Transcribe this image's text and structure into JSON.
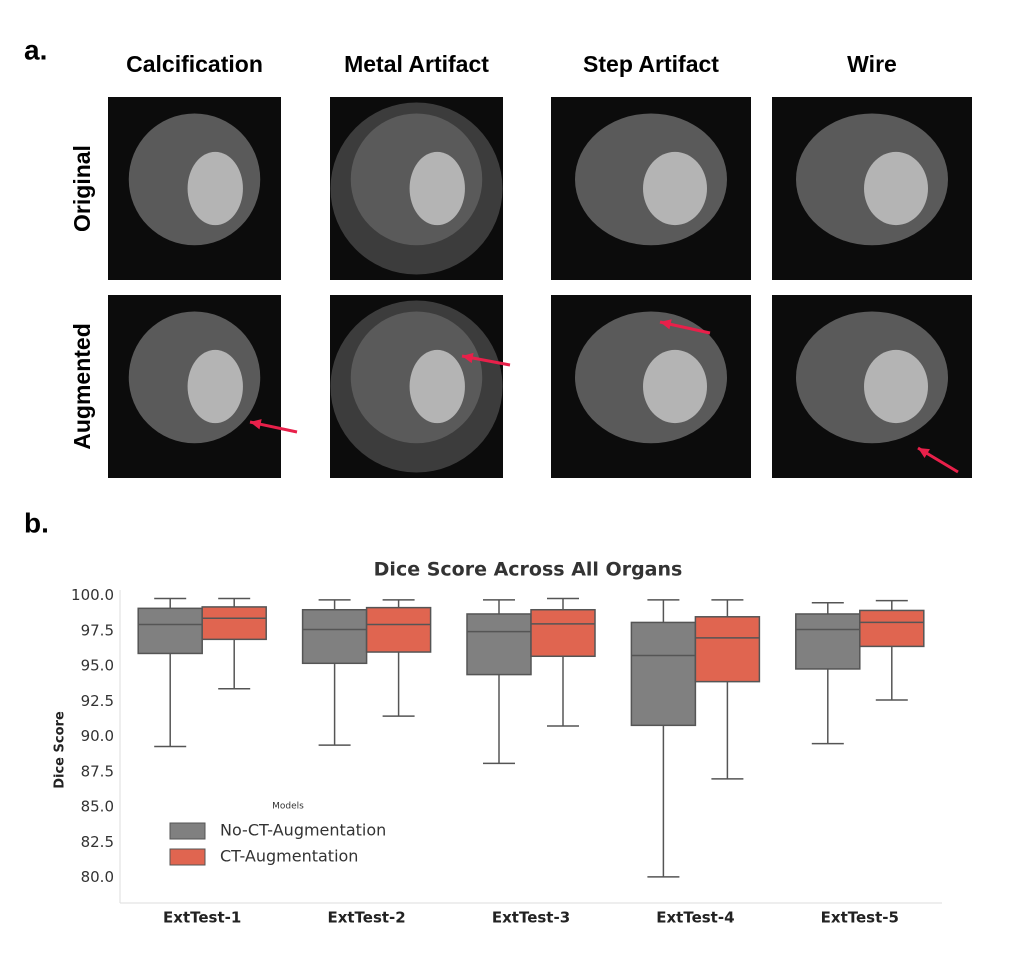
{
  "panel_a": {
    "label": "a.",
    "columns": [
      "Calcification",
      "Metal Artifact",
      "Step Artifact",
      "Wire"
    ],
    "rows": [
      "Original",
      "Augmented"
    ]
  },
  "panel_b": {
    "label": "b."
  },
  "chart_data": {
    "type": "box",
    "title": "Dice Score Across All Organs",
    "y_label": "Dice Score",
    "categories": [
      "ExtTest-1",
      "ExtTest-2",
      "ExtTest-3",
      "ExtTest-4",
      "ExtTest-5"
    ],
    "legend_title": "Models",
    "legend_position": "lower left",
    "grid": false,
    "ylim": [
      78.2,
      100.4
    ],
    "yticks": [
      {
        "value": 100,
        "label": "100.0"
      },
      97.5,
      {
        "value": 95,
        "label": "95.0"
      },
      92.5,
      {
        "value": 90,
        "label": "90.0"
      },
      87.5,
      {
        "value": 85,
        "label": "85.0"
      },
      82.5,
      {
        "value": 80,
        "label": "80.0"
      }
    ],
    "series": [
      {
        "name": "No-CT-Augmentation",
        "color": "#808080",
        "values": [
          {
            "min": 89.3,
            "q1": 95.9,
            "median": 97.95,
            "q3": 99.1,
            "max": 99.8
          },
          {
            "min": 89.4,
            "q1": 95.2,
            "median": 97.6,
            "q3": 99.0,
            "max": 99.7
          },
          {
            "min": 88.1,
            "q1": 94.4,
            "median": 97.45,
            "q3": 98.7,
            "max": 99.7
          },
          {
            "min": 80.05,
            "q1": 90.8,
            "median": 95.75,
            "q3": 98.1,
            "max": 99.7
          },
          {
            "min": 89.5,
            "q1": 94.8,
            "median": 97.6,
            "q3": 98.7,
            "max": 99.5
          }
        ]
      },
      {
        "name": "CT-Augmentation",
        "color": "#e06550",
        "values": [
          {
            "min": 93.4,
            "q1": 96.9,
            "median": 98.4,
            "q3": 99.2,
            "max": 99.8
          },
          {
            "min": 91.45,
            "q1": 96.0,
            "median": 97.95,
            "q3": 99.15,
            "max": 99.7
          },
          {
            "min": 90.75,
            "q1": 95.7,
            "median": 98.0,
            "q3": 99.0,
            "max": 99.8
          },
          {
            "min": 87.0,
            "q1": 93.9,
            "median": 97.0,
            "q3": 98.5,
            "max": 99.7
          },
          {
            "min": 92.6,
            "q1": 96.4,
            "median": 98.1,
            "q3": 98.95,
            "max": 99.65
          }
        ]
      }
    ]
  }
}
